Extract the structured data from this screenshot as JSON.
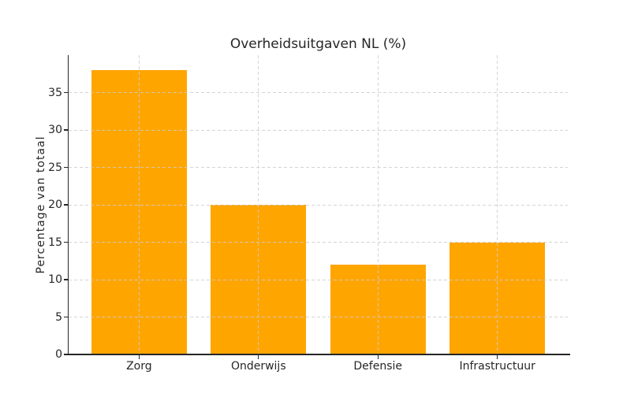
{
  "chart_data": {
    "type": "bar",
    "title": "Overheidsuitgaven NL (%)",
    "categories": [
      "Zorg",
      "Onderwijs",
      "Defensie",
      "Infrastructuur"
    ],
    "values": [
      38,
      20,
      12,
      15
    ],
    "xlabel": "",
    "ylabel": "Percentage van totaal",
    "ylim": [
      0,
      40
    ],
    "yticks": [
      0,
      5,
      10,
      15,
      20,
      25,
      30,
      35
    ],
    "grid": "dashed, both directions, drawn above bars",
    "legend": "none",
    "colors": {
      "background": "#FFFFFF",
      "bar": "#FFA500",
      "grid": "#CCCCCC",
      "text": "#262626",
      "spine": "#262626"
    }
  }
}
